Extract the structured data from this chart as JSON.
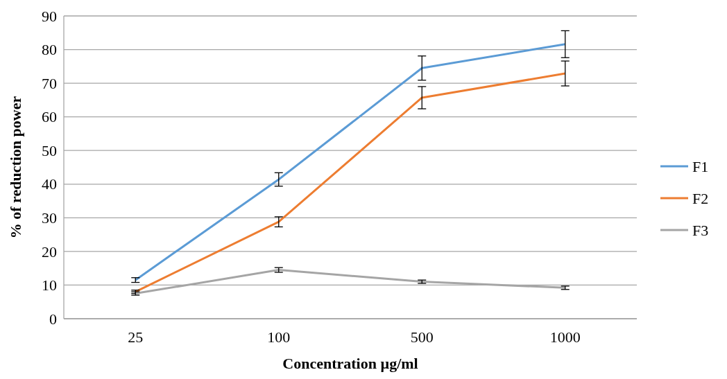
{
  "chart_data": {
    "type": "line",
    "xlabel": "Concentration µg/ml",
    "ylabel": "% of reduction power",
    "categories": [
      "25",
      "100",
      "500",
      "1000"
    ],
    "series": [
      {
        "name": "F1",
        "color": "#5b9bd5",
        "values": [
          11.5,
          41.4,
          74.5,
          81.6
        ],
        "errors": [
          0.7,
          2,
          3.6,
          4
        ]
      },
      {
        "name": "F2",
        "color": "#ed7d31",
        "values": [
          8,
          28.8,
          65.7,
          72.9
        ],
        "errors": [
          0.5,
          1.5,
          3.3,
          3.7
        ]
      },
      {
        "name": "F3",
        "color": "#a5a5a5",
        "values": [
          7.5,
          14.5,
          11,
          9.2
        ],
        "errors": [
          0.5,
          0.7,
          0.5,
          0.5
        ]
      }
    ],
    "ylim": [
      0,
      90
    ],
    "yticks": [
      0,
      10,
      20,
      30,
      40,
      50,
      60,
      70,
      80,
      90
    ],
    "grid": "y",
    "legend": "right",
    "marker": "none",
    "line_style": "solid"
  }
}
